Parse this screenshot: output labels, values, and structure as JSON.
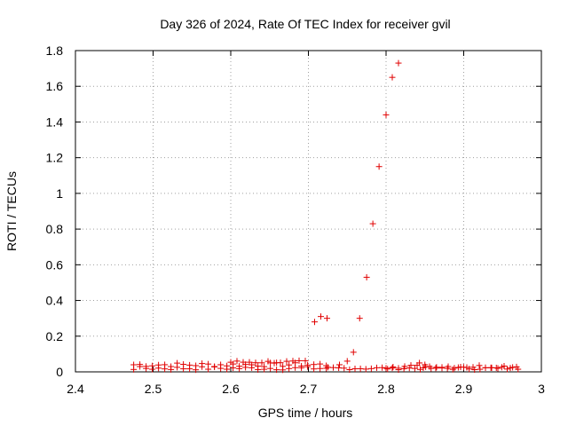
{
  "chart_data": {
    "type": "scatter",
    "title": "Day 326 of 2024, Rate Of TEC Index for receiver gvil",
    "xlabel": "GPS time / hours",
    "ylabel": "ROTI / TECUs",
    "xlim": [
      2.4,
      3.0
    ],
    "ylim": [
      0,
      1.8
    ],
    "xticks": [
      "2.4",
      "2.5",
      "2.6",
      "2.7",
      "2.8",
      "2.9",
      "3"
    ],
    "yticks": [
      "0",
      "0.2",
      "0.4",
      "0.6",
      "0.8",
      "1",
      "1.2",
      "1.4",
      "1.6",
      "1.8"
    ],
    "grid": true,
    "marker": "+",
    "color": "#e00000",
    "series": [
      {
        "name": "ROTI",
        "points": [
          [
            2.708,
            0.28
          ],
          [
            2.716,
            0.31
          ],
          [
            2.724,
            0.3
          ],
          [
            2.758,
            0.11
          ],
          [
            2.766,
            0.3
          ],
          [
            2.775,
            0.53
          ],
          [
            2.783,
            0.83
          ],
          [
            2.791,
            1.15
          ],
          [
            2.8,
            1.44
          ],
          [
            2.808,
            1.65
          ],
          [
            2.816,
            1.73
          ],
          [
            2.74,
            0.04
          ],
          [
            2.75,
            0.06
          ],
          [
            2.843,
            0.05
          ],
          [
            2.85,
            0.04
          ]
        ]
      }
    ],
    "baseline_tracks": [
      {
        "x_start": 2.475,
        "x_end": 2.725,
        "level": 0.04,
        "step": 0.008,
        "spread": 0.012
      },
      {
        "x_start": 2.475,
        "x_end": 2.725,
        "level": 0.02,
        "step": 0.008,
        "spread": 0.01
      },
      {
        "x_start": 2.6,
        "x_end": 2.7,
        "level": 0.055,
        "step": 0.008,
        "spread": 0.008
      },
      {
        "x_start": 2.725,
        "x_end": 2.975,
        "level": 0.02,
        "step": 0.007,
        "spread": 0.008
      },
      {
        "x_start": 2.8,
        "x_end": 2.975,
        "level": 0.03,
        "step": 0.008,
        "spread": 0.01
      }
    ]
  }
}
